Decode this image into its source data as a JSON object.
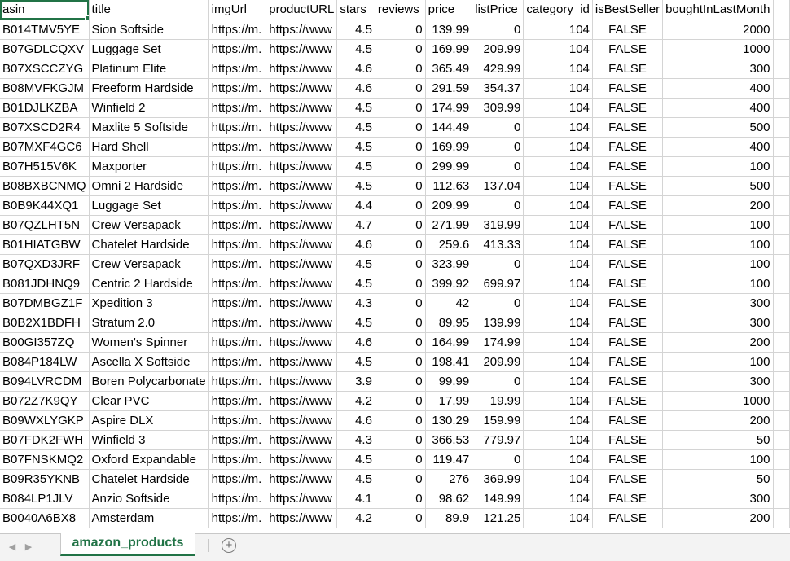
{
  "headers": [
    "asin",
    "title",
    "imgUrl",
    "productURL",
    "stars",
    "reviews",
    "price",
    "listPrice",
    "category_id",
    "isBestSeller",
    "boughtInLastMonth"
  ],
  "rows": [
    [
      "B014TMV5YE",
      "Sion Softside",
      "https://m.",
      "https://www",
      "4.5",
      "0",
      "139.99",
      "0",
      "104",
      "FALSE",
      "2000"
    ],
    [
      "B07GDLCQXV",
      "Luggage Set",
      "https://m.",
      "https://www",
      "4.5",
      "0",
      "169.99",
      "209.99",
      "104",
      "FALSE",
      "1000"
    ],
    [
      "B07XSCCZYG",
      "Platinum Elite",
      "https://m.",
      "https://www",
      "4.6",
      "0",
      "365.49",
      "429.99",
      "104",
      "FALSE",
      "300"
    ],
    [
      "B08MVFKGJM",
      "Freeform Hardside",
      "https://m.",
      "https://www",
      "4.6",
      "0",
      "291.59",
      "354.37",
      "104",
      "FALSE",
      "400"
    ],
    [
      "B01DJLKZBA",
      "Winfield 2",
      "https://m.",
      "https://www",
      "4.5",
      "0",
      "174.99",
      "309.99",
      "104",
      "FALSE",
      "400"
    ],
    [
      "B07XSCD2R4",
      "Maxlite 5 Softside",
      "https://m.",
      "https://www",
      "4.5",
      "0",
      "144.49",
      "0",
      "104",
      "FALSE",
      "500"
    ],
    [
      "B07MXF4GC6",
      "Hard Shell",
      "https://m.",
      "https://www",
      "4.5",
      "0",
      "169.99",
      "0",
      "104",
      "FALSE",
      "400"
    ],
    [
      "B07H515V6K",
      "Maxporter",
      "https://m.",
      "https://www",
      "4.5",
      "0",
      "299.99",
      "0",
      "104",
      "FALSE",
      "100"
    ],
    [
      "B08BXBCNMQ",
      "Omni 2 Hardside",
      "https://m.",
      "https://www",
      "4.5",
      "0",
      "112.63",
      "137.04",
      "104",
      "FALSE",
      "500"
    ],
    [
      "B0B9K44XQ1",
      "Luggage Set",
      "https://m.",
      "https://www",
      "4.4",
      "0",
      "209.99",
      "0",
      "104",
      "FALSE",
      "200"
    ],
    [
      "B07QZLHT5N",
      "Crew Versapack",
      "https://m.",
      "https://www",
      "4.7",
      "0",
      "271.99",
      "319.99",
      "104",
      "FALSE",
      "100"
    ],
    [
      "B01HIATGBW",
      "Chatelet Hardside",
      "https://m.",
      "https://www",
      "4.6",
      "0",
      "259.6",
      "413.33",
      "104",
      "FALSE",
      "100"
    ],
    [
      "B07QXD3JRF",
      "Crew Versapack",
      "https://m.",
      "https://www",
      "4.5",
      "0",
      "323.99",
      "0",
      "104",
      "FALSE",
      "100"
    ],
    [
      "B081JDHNQ9",
      "Centric 2 Hardside",
      "https://m.",
      "https://www",
      "4.5",
      "0",
      "399.92",
      "699.97",
      "104",
      "FALSE",
      "100"
    ],
    [
      "B07DMBGZ1F",
      "Xpedition 3",
      "https://m.",
      "https://www",
      "4.3",
      "0",
      "42",
      "0",
      "104",
      "FALSE",
      "300"
    ],
    [
      "B0B2X1BDFH",
      "Stratum 2.0",
      "https://m.",
      "https://www",
      "4.5",
      "0",
      "89.95",
      "139.99",
      "104",
      "FALSE",
      "300"
    ],
    [
      "B00GI357ZQ",
      "Women's Spinner",
      "https://m.",
      "https://www",
      "4.6",
      "0",
      "164.99",
      "174.99",
      "104",
      "FALSE",
      "200"
    ],
    [
      "B084P184LW",
      "Ascella X Softside",
      "https://m.",
      "https://www",
      "4.5",
      "0",
      "198.41",
      "209.99",
      "104",
      "FALSE",
      "100"
    ],
    [
      "B094LVRCDM",
      "Boren Polycarbonate",
      "https://m.",
      "https://www",
      "3.9",
      "0",
      "99.99",
      "0",
      "104",
      "FALSE",
      "300"
    ],
    [
      "B072Z7K9QY",
      "Clear PVC",
      "https://m.",
      "https://www",
      "4.2",
      "0",
      "17.99",
      "19.99",
      "104",
      "FALSE",
      "1000"
    ],
    [
      "B09WXLYGKP",
      "Aspire DLX",
      "https://m.",
      "https://www",
      "4.6",
      "0",
      "130.29",
      "159.99",
      "104",
      "FALSE",
      "200"
    ],
    [
      "B07FDK2FWH",
      "Winfield 3",
      "https://m.",
      "https://www",
      "4.3",
      "0",
      "366.53",
      "779.97",
      "104",
      "FALSE",
      "50"
    ],
    [
      "B07FNSKMQ2",
      "Oxford Expandable",
      "https://m.",
      "https://www",
      "4.5",
      "0",
      "119.47",
      "0",
      "104",
      "FALSE",
      "100"
    ],
    [
      "B09R35YKNB",
      "Chatelet Hardside",
      "https://m.",
      "https://www",
      "4.5",
      "0",
      "276",
      "369.99",
      "104",
      "FALSE",
      "50"
    ],
    [
      "B084LP1JLV",
      "Anzio Softside",
      "https://m.",
      "https://www",
      "4.1",
      "0",
      "98.62",
      "149.99",
      "104",
      "FALSE",
      "300"
    ],
    [
      "B0040A6BX8",
      "Amsterdam",
      "https://m.",
      "https://www",
      "4.2",
      "0",
      "89.9",
      "121.25",
      "104",
      "FALSE",
      "200"
    ]
  ],
  "sheet_tab": "amazon_products",
  "nav": {
    "prev_icon": "◀",
    "next_icon": "▶",
    "add_icon": "+"
  }
}
